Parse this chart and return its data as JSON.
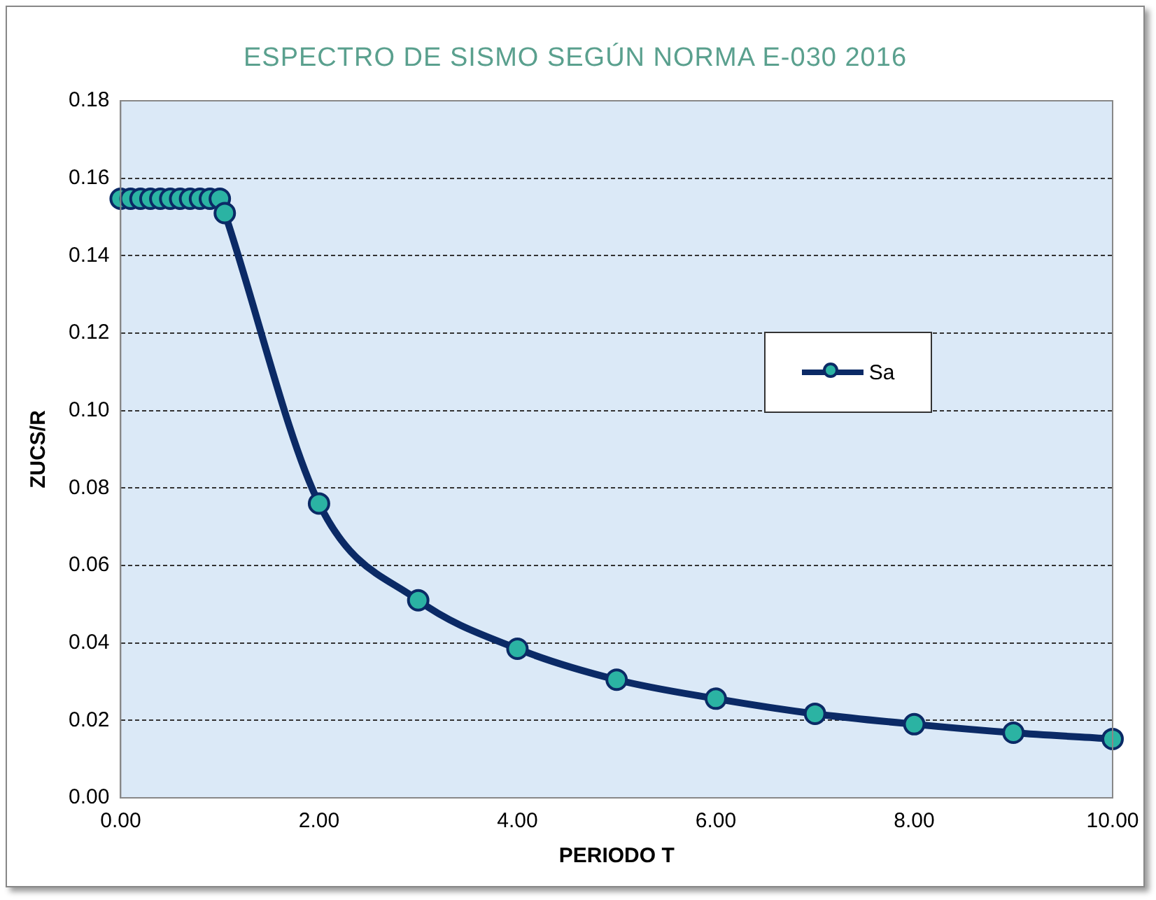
{
  "chart_data": {
    "type": "line",
    "title": "ESPECTRO DE SISMO SEGÚN NORMA E-030 2016",
    "xlabel": "PERIODO T",
    "ylabel": "ZUCS/R",
    "x": [
      0,
      0.1,
      0.2,
      0.3,
      0.4,
      0.5,
      0.6,
      0.7,
      0.8,
      0.9,
      1.0,
      1.05,
      2,
      3,
      4,
      5,
      6,
      7,
      8,
      9,
      10
    ],
    "series": [
      {
        "name": "Sa",
        "color": "#0b2a66",
        "values": [
          0.1547,
          0.1547,
          0.1547,
          0.1547,
          0.1547,
          0.1547,
          0.1547,
          0.1547,
          0.1547,
          0.1547,
          0.1547,
          0.151,
          0.076,
          0.051,
          0.0385,
          0.0305,
          0.0256,
          0.0217,
          0.019,
          0.0168,
          0.0152
        ]
      }
    ],
    "xlim": [
      0,
      10
    ],
    "xticks": [
      {
        "value": 0,
        "label": "0.00"
      },
      {
        "value": 2,
        "label": "2.00"
      },
      {
        "value": 4,
        "label": "4.00"
      },
      {
        "value": 6,
        "label": "6.00"
      },
      {
        "value": 8,
        "label": "8.00"
      },
      {
        "value": 10,
        "label": "10.00"
      }
    ],
    "ylim": [
      0,
      0.18
    ],
    "yticks": [
      {
        "value": 0,
        "label": "0.00"
      },
      {
        "value": 0.02,
        "label": "0.02"
      },
      {
        "value": 0.04,
        "label": "0.04"
      },
      {
        "value": 0.06,
        "label": "0.06"
      },
      {
        "value": 0.08,
        "label": "0.08"
      },
      {
        "value": 0.1,
        "label": "0.10"
      },
      {
        "value": 0.12,
        "label": "0.12"
      },
      {
        "value": 0.14,
        "label": "0.14"
      },
      {
        "value": 0.16,
        "label": "0.16"
      },
      {
        "value": 0.18,
        "label": "0.18"
      }
    ],
    "grid": "y",
    "legend": "right",
    "marker": "circle",
    "line_style": "solid"
  }
}
